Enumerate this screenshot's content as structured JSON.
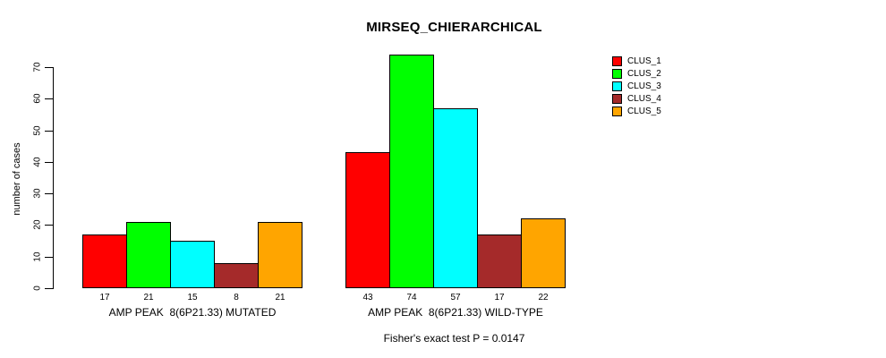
{
  "title": "MIRSEQ_CHIERARCHICAL",
  "y_axis": {
    "label": "number of cases"
  },
  "footnote": "Fisher's exact test P = 0.0147",
  "chart_data": {
    "type": "bar",
    "title": "MIRSEQ_CHIERARCHICAL",
    "xlabel": "",
    "ylabel": "number of cases",
    "ylim": [
      0,
      70
    ],
    "yticks": [
      0,
      10,
      20,
      30,
      40,
      50,
      60,
      70
    ],
    "grid": false,
    "legend_position": "top-right",
    "series": [
      {
        "name": "CLUS_1",
        "color": "#FF0000"
      },
      {
        "name": "CLUS_2",
        "color": "#00FF00"
      },
      {
        "name": "CLUS_3",
        "color": "#00FFFF"
      },
      {
        "name": "CLUS_4",
        "color": "#A52A2A"
      },
      {
        "name": "CLUS_5",
        "color": "#FFA500"
      }
    ],
    "groups": [
      {
        "key": "mutated",
        "label": "AMP PEAK  8(6P21.33) MUTATED",
        "values": [
          17,
          21,
          15,
          8,
          21
        ]
      },
      {
        "key": "wild-type",
        "label": "AMP PEAK  8(6P21.33) WILD-TYPE",
        "values": [
          43,
          74,
          57,
          17,
          22
        ]
      }
    ],
    "bar_value_labels_shown": true,
    "annotation": "Fisher's exact test P = 0.0147"
  }
}
